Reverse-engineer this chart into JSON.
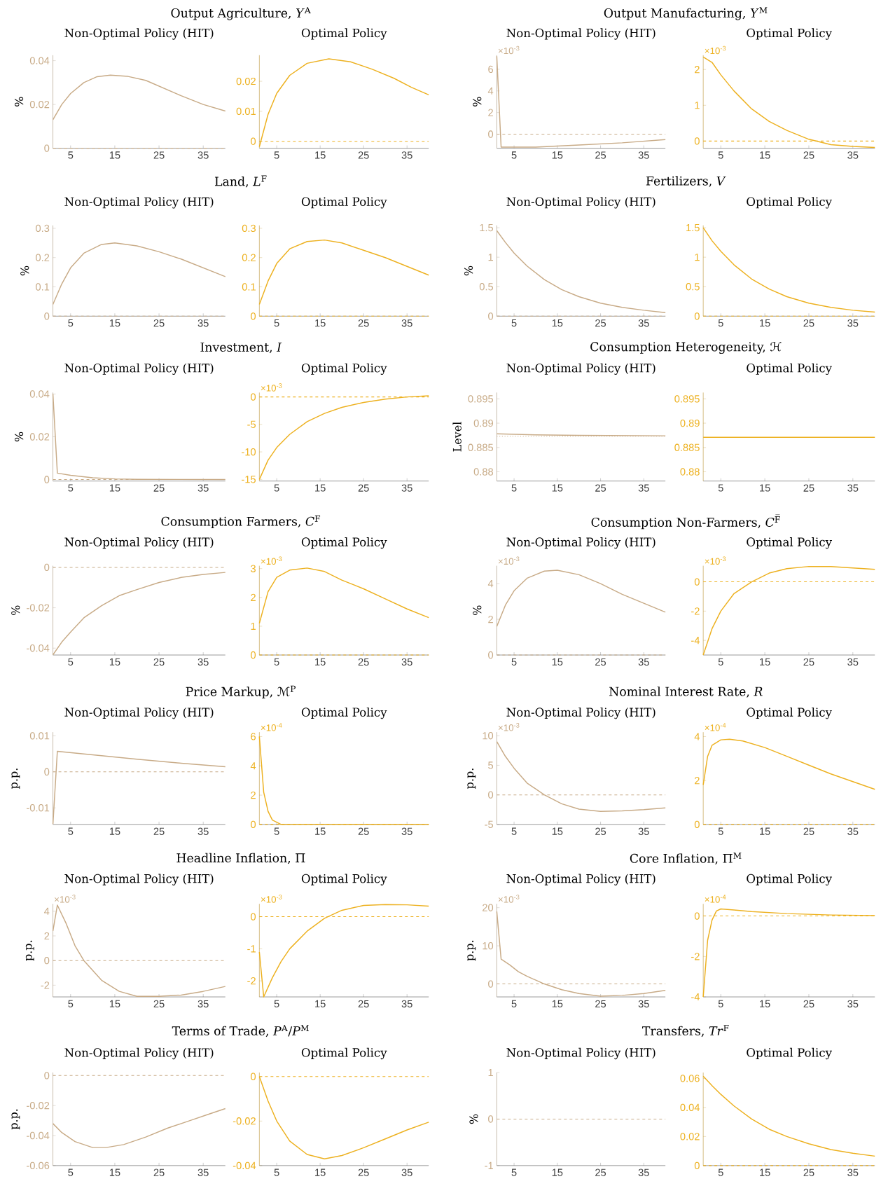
{
  "chart_data": [
    {
      "type": "line",
      "title": "Output Agriculture, *Y*$^{A}$",
      "subtitle": "Non-Optimal Policy (HIT)",
      "ylabel": "%",
      "x": [
        1,
        3,
        5,
        8,
        11,
        14,
        18,
        22,
        26,
        30,
        35,
        40
      ],
      "series": [
        {
          "color": "#c8ab87",
          "values": [
            0.013,
            0.02,
            0.025,
            0.03,
            0.0327,
            0.0334,
            0.0328,
            0.031,
            0.0275,
            0.024,
            0.02,
            0.017
          ]
        }
      ],
      "xlim": [
        1,
        40
      ],
      "ylim": [
        0,
        0.0425
      ],
      "xticks": [
        5,
        15,
        25,
        35
      ],
      "yticks": [
        0,
        0.02,
        0.04
      ],
      "ref_lines": [
        {
          "axis": "y",
          "value": 0,
          "color": "#c8ab87",
          "line_style": "dashed"
        }
      ]
    },
    {
      "type": "line",
      "subtitle": "Optimal Policy",
      "x": [
        1,
        3,
        5,
        8,
        12,
        17,
        22,
        27,
        32,
        36,
        40
      ],
      "series": [
        {
          "color": "#edb120",
          "values": [
            -0.0018,
            0.009,
            0.016,
            0.022,
            0.026,
            0.0275,
            0.0265,
            0.024,
            0.021,
            0.018,
            0.0155
          ]
        }
      ],
      "xlim": [
        1,
        40
      ],
      "ylim": [
        -0.0023,
        0.0287
      ],
      "xticks": [
        5,
        15,
        25,
        35
      ],
      "yticks": [
        0,
        0.01,
        0.02
      ],
      "ref_lines": [
        {
          "axis": "y",
          "value": 0,
          "color": "#edb120",
          "line_style": "dashed"
        }
      ]
    },
    {
      "type": "line",
      "title": "Output Manufacturing, *Y*$^{M}$",
      "subtitle": "Non-Optimal Policy (HIT)",
      "ylabel": "%",
      "x": [
        1,
        2,
        10,
        20,
        30,
        40
      ],
      "series": [
        {
          "color": "#c8ab87",
          "values": [
            7.2,
            -1.2,
            -1.2,
            -1.0,
            -0.8,
            -0.5
          ]
        }
      ],
      "xlim": [
        1,
        40
      ],
      "ylim": [
        -1.3,
        7.3
      ],
      "xticks": [
        5,
        15,
        25,
        35
      ],
      "yticks": [
        0,
        2,
        4,
        6
      ],
      "ref_lines": [
        {
          "axis": "y",
          "value": 0,
          "color": "#c8ab87",
          "line_style": "dashed"
        }
      ],
      "annotations": [
        "×10$^{-3}$"
      ]
    },
    {
      "type": "line",
      "subtitle": "Optimal Policy",
      "x": [
        1,
        3,
        5,
        8,
        12,
        16,
        20,
        25,
        30,
        35,
        40
      ],
      "series": [
        {
          "color": "#edb120",
          "values": [
            2.35,
            2.2,
            1.85,
            1.4,
            0.9,
            0.55,
            0.3,
            0.05,
            -0.1,
            -0.15,
            -0.18
          ]
        }
      ],
      "xlim": [
        1,
        40
      ],
      "ylim": [
        -0.2,
        2.4
      ],
      "xticks": [
        5,
        15,
        25,
        35
      ],
      "yticks": [
        0,
        1,
        2
      ],
      "ref_lines": [
        {
          "axis": "y",
          "value": 0,
          "color": "#edb120",
          "line_style": "dashed"
        }
      ],
      "annotations": [
        "×10$^{-3}$"
      ]
    },
    {
      "type": "line",
      "title": "Land, *L*$^{F}$",
      "subtitle": "Non-Optimal Policy (HIT)",
      "ylabel": "%",
      "x": [
        1,
        3,
        5,
        8,
        12,
        15,
        20,
        25,
        30,
        35,
        40
      ],
      "series": [
        {
          "color": "#c8ab87",
          "values": [
            0.04,
            0.11,
            0.165,
            0.215,
            0.245,
            0.25,
            0.24,
            0.22,
            0.195,
            0.165,
            0.135
          ]
        }
      ],
      "xlim": [
        1,
        40
      ],
      "ylim": [
        0,
        0.31
      ],
      "xticks": [
        5,
        15,
        25,
        35
      ],
      "yticks": [
        0,
        0.1,
        0.2,
        0.3
      ],
      "ref_lines": [
        {
          "axis": "y",
          "value": 0,
          "color": "#c8ab87",
          "line_style": "dashed"
        }
      ]
    },
    {
      "type": "line",
      "subtitle": "Optimal Policy",
      "x": [
        1,
        3,
        5,
        8,
        12,
        16,
        20,
        25,
        30,
        35,
        40
      ],
      "series": [
        {
          "color": "#edb120",
          "values": [
            0.04,
            0.12,
            0.18,
            0.23,
            0.255,
            0.26,
            0.25,
            0.225,
            0.2,
            0.17,
            0.14
          ]
        }
      ],
      "xlim": [
        1,
        40
      ],
      "ylim": [
        0,
        0.31
      ],
      "xticks": [
        5,
        15,
        25,
        35
      ],
      "yticks": [
        0,
        0.1,
        0.2,
        0.3
      ],
      "ref_lines": [
        {
          "axis": "y",
          "value": 0,
          "color": "#edb120",
          "line_style": "dashed"
        }
      ]
    },
    {
      "type": "line",
      "title": "Fertilizers, *V*",
      "subtitle": "Non-Optimal Policy (HIT)",
      "ylabel": "%",
      "x": [
        1,
        3,
        5,
        8,
        12,
        16,
        20,
        25,
        30,
        35,
        40
      ],
      "series": [
        {
          "color": "#c8ab87",
          "values": [
            1.45,
            1.25,
            1.07,
            0.85,
            0.62,
            0.45,
            0.33,
            0.22,
            0.15,
            0.1,
            0.06
          ]
        }
      ],
      "xlim": [
        1,
        40
      ],
      "ylim": [
        0,
        1.54
      ],
      "xticks": [
        5,
        15,
        25,
        35
      ],
      "yticks": [
        0,
        0.5,
        1,
        1.5
      ],
      "ref_lines": [
        {
          "axis": "y",
          "value": 0,
          "color": "#c8ab87",
          "line_style": "dashed"
        }
      ]
    },
    {
      "type": "line",
      "subtitle": "Optimal Policy",
      "x": [
        1,
        3,
        5,
        8,
        12,
        16,
        20,
        25,
        30,
        35,
        40
      ],
      "series": [
        {
          "color": "#edb120",
          "values": [
            1.5,
            1.28,
            1.1,
            0.87,
            0.63,
            0.46,
            0.33,
            0.22,
            0.15,
            0.1,
            0.07
          ]
        }
      ],
      "xlim": [
        1,
        40
      ],
      "ylim": [
        0,
        1.54
      ],
      "xticks": [
        5,
        15,
        25,
        35
      ],
      "yticks": [
        0,
        0.5,
        1,
        1.5
      ],
      "ref_lines": [
        {
          "axis": "y",
          "value": 0,
          "color": "#edb120",
          "line_style": "dashed"
        }
      ]
    },
    {
      "type": "line",
      "title": "Investment, *I*",
      "subtitle": "Non-Optimal Policy (HIT)",
      "ylabel": "%",
      "x": [
        1,
        2,
        5,
        10,
        15,
        20,
        40
      ],
      "series": [
        {
          "color": "#c8ab87",
          "values": [
            0.04,
            0.003,
            0.002,
            0.0008,
            0.0003,
            0.0001,
            0
          ]
        }
      ],
      "xlim": [
        1,
        40
      ],
      "ylim": [
        -0.0007,
        0.0407
      ],
      "xticks": [
        5,
        15,
        25,
        35
      ],
      "yticks": [
        0,
        0.02,
        0.04
      ],
      "ref_lines": [
        {
          "axis": "y",
          "value": 0,
          "color": "#c8ab87",
          "line_style": "dashed"
        }
      ]
    },
    {
      "type": "line",
      "subtitle": "Optimal Policy",
      "x": [
        1,
        3,
        5,
        8,
        12,
        16,
        20,
        25,
        30,
        35,
        40
      ],
      "series": [
        {
          "color": "#edb120",
          "values": [
            -15,
            -11.5,
            -9.2,
            -6.8,
            -4.5,
            -3,
            -1.9,
            -1,
            -0.4,
            0,
            0.2
          ]
        }
      ],
      "xlim": [
        1,
        40
      ],
      "ylim": [
        -15.3,
        0.8
      ],
      "xticks": [
        5,
        15,
        25,
        35
      ],
      "yticks": [
        -15,
        -10,
        -5,
        0
      ],
      "ref_lines": [
        {
          "axis": "y",
          "value": 0,
          "color": "#edb120",
          "line_style": "dashed"
        }
      ],
      "annotations": [
        "×10$^{-3}$"
      ]
    },
    {
      "type": "line",
      "title": "Consumption Heterogeneity, ℋ",
      "subtitle": "Non-Optimal Policy (HIT)",
      "ylabel": "Level",
      "x": [
        1,
        10,
        20,
        40
      ],
      "series": [
        {
          "color": "#c8ab87",
          "values": [
            0.8878,
            0.8876,
            0.8875,
            0.8874
          ]
        }
      ],
      "xlim": [
        1,
        40
      ],
      "ylim": [
        0.8781,
        0.8963
      ],
      "xticks": [
        5,
        15,
        25,
        35
      ],
      "yticks": [
        0.88,
        0.885,
        0.89,
        0.895
      ],
      "ref_lines": [
        {
          "axis": "y",
          "value": 0.8873,
          "color": "#c8ab87",
          "line_style": "dotted"
        }
      ]
    },
    {
      "type": "line",
      "subtitle": "Optimal Policy",
      "x": [
        1,
        40
      ],
      "series": [
        {
          "color": "#edb120",
          "values": [
            0.8871,
            0.8871
          ]
        }
      ],
      "xlim": [
        1,
        40
      ],
      "ylim": [
        0.8781,
        0.8963
      ],
      "xticks": [
        5,
        15,
        25,
        35
      ],
      "yticks": [
        0.88,
        0.885,
        0.89,
        0.895
      ]
    },
    {
      "type": "line",
      "title": "Consumption Farmers, *C*$^{F}$",
      "subtitle": "Non-Optimal Policy (HIT)",
      "ylabel": "%",
      "x": [
        1,
        3,
        5,
        8,
        12,
        16,
        20,
        25,
        30,
        35,
        40
      ],
      "series": [
        {
          "color": "#c8ab87",
          "values": [
            -0.0433,
            -0.037,
            -0.032,
            -0.025,
            -0.019,
            -0.014,
            -0.011,
            -0.0075,
            -0.005,
            -0.0035,
            -0.0025
          ]
        }
      ],
      "xlim": [
        1,
        40
      ],
      "ylim": [
        -0.0434,
        0.0008
      ],
      "xticks": [
        5,
        15,
        25,
        35
      ],
      "yticks": [
        -0.04,
        -0.02,
        0
      ],
      "ref_lines": [
        {
          "axis": "y",
          "value": 0,
          "color": "#c8ab87",
          "line_style": "dashed"
        }
      ]
    },
    {
      "type": "line",
      "subtitle": "Optimal Policy",
      "x": [
        1,
        3,
        5,
        8,
        12,
        16,
        20,
        25,
        30,
        35,
        40
      ],
      "series": [
        {
          "color": "#edb120",
          "values": [
            1.1,
            2.2,
            2.7,
            2.95,
            3.02,
            2.9,
            2.6,
            2.3,
            1.95,
            1.6,
            1.3
          ]
        }
      ],
      "xlim": [
        1,
        40
      ],
      "ylim": [
        0,
        3.1
      ],
      "xticks": [
        5,
        15,
        25,
        35
      ],
      "yticks": [
        0,
        1,
        2,
        3
      ],
      "ref_lines": [
        {
          "axis": "y",
          "value": 0,
          "color": "#edb120",
          "line_style": "dashed"
        }
      ],
      "annotations": [
        "×10$^{-3}$"
      ]
    },
    {
      "type": "line",
      "title": "Consumption Non-Farmers, *C*$^{F̅}$",
      "subtitle": "Non-Optimal Policy (HIT)",
      "ylabel": "%",
      "x": [
        1,
        3,
        5,
        8,
        12,
        15,
        20,
        25,
        30,
        35,
        40
      ],
      "series": [
        {
          "color": "#c8ab87",
          "values": [
            1.6,
            2.8,
            3.6,
            4.3,
            4.7,
            4.75,
            4.5,
            4,
            3.4,
            2.9,
            2.4
          ]
        }
      ],
      "xlim": [
        1,
        40
      ],
      "ylim": [
        0,
        5
      ],
      "xticks": [
        5,
        15,
        25,
        35
      ],
      "yticks": [
        0,
        2,
        4
      ],
      "ref_lines": [
        {
          "axis": "y",
          "value": 0,
          "color": "#c8ab87",
          "line_style": "dashed"
        }
      ],
      "annotations": [
        "×10$^{-3}$"
      ]
    },
    {
      "type": "line",
      "subtitle": "Optimal Policy",
      "x": [
        1,
        3,
        5,
        8,
        12,
        16,
        20,
        25,
        30,
        35,
        40
      ],
      "series": [
        {
          "color": "#edb120",
          "values": [
            -5,
            -3.2,
            -2,
            -0.8,
            0,
            0.6,
            0.9,
            1.05,
            1.05,
            0.95,
            0.85
          ]
        }
      ],
      "xlim": [
        1,
        40
      ],
      "ylim": [
        -5,
        1.1
      ],
      "xticks": [
        5,
        15,
        25,
        35
      ],
      "yticks": [
        -4,
        -2,
        0
      ],
      "ref_lines": [
        {
          "axis": "y",
          "value": 0,
          "color": "#edb120",
          "line_style": "dashed"
        }
      ],
      "annotations": [
        "×10$^{-3}$"
      ]
    },
    {
      "type": "line",
      "title": "Price Markup, ℳ$^{P}$",
      "subtitle": "Non-Optimal Policy (HIT)",
      "ylabel": "p.p.",
      "x": [
        1,
        2,
        10,
        20,
        30,
        40
      ],
      "series": [
        {
          "color": "#c8ab87",
          "values": [
            -0.0145,
            0.0057,
            0.0047,
            0.0035,
            0.0024,
            0.0014
          ]
        }
      ],
      "xlim": [
        1,
        40
      ],
      "ylim": [
        -0.0146,
        0.011
      ],
      "xticks": [
        5,
        15,
        25,
        35
      ],
      "yticks": [
        -0.01,
        0,
        0.01
      ],
      "ref_lines": [
        {
          "axis": "y",
          "value": 0,
          "color": "#c8ab87",
          "line_style": "dashed"
        }
      ]
    },
    {
      "type": "line",
      "subtitle": "Optimal Policy",
      "x": [
        1,
        2,
        3,
        4,
        6,
        40
      ],
      "series": [
        {
          "color": "#edb120",
          "values": [
            6,
            2.2,
            0.9,
            0.3,
            0,
            0
          ]
        }
      ],
      "xlim": [
        1,
        40
      ],
      "ylim": [
        0,
        6.3
      ],
      "xticks": [
        5,
        15,
        25,
        35
      ],
      "yticks": [
        0,
        2,
        4,
        6
      ],
      "ref_lines": [
        {
          "axis": "y",
          "value": 0,
          "color": "#edb120",
          "line_style": "dashed"
        }
      ],
      "annotations": [
        "×10$^{-4}$"
      ]
    },
    {
      "type": "line",
      "title": "Nominal Interest Rate, *R*",
      "subtitle": "Non-Optimal Policy (HIT)",
      "ylabel": "p.p.",
      "x": [
        1,
        3,
        5,
        8,
        12,
        16,
        20,
        25,
        30,
        35,
        40
      ],
      "series": [
        {
          "color": "#c8ab87",
          "values": [
            9,
            6.5,
            4.5,
            2,
            0,
            -1.5,
            -2.4,
            -2.8,
            -2.7,
            -2.5,
            -2.2
          ]
        }
      ],
      "xlim": [
        1,
        40
      ],
      "ylim": [
        -5,
        10.6
      ],
      "xticks": [
        5,
        15,
        25,
        35
      ],
      "yticks": [
        -5,
        0,
        5,
        10
      ],
      "ref_lines": [
        {
          "axis": "y",
          "value": 0,
          "color": "#c8ab87",
          "line_style": "dashed"
        }
      ],
      "annotations": [
        "×10$^{-3}$"
      ]
    },
    {
      "type": "line",
      "subtitle": "Optimal Policy",
      "x": [
        1,
        2,
        3,
        5,
        7,
        10,
        15,
        20,
        25,
        30,
        35,
        40
      ],
      "series": [
        {
          "color": "#edb120",
          "values": [
            1.8,
            3.1,
            3.6,
            3.85,
            3.88,
            3.8,
            3.5,
            3.1,
            2.7,
            2.3,
            1.95,
            1.6
          ]
        }
      ],
      "xlim": [
        1,
        40
      ],
      "ylim": [
        0,
        4.2
      ],
      "xticks": [
        5,
        15,
        25,
        35
      ],
      "yticks": [
        0,
        2,
        4
      ],
      "ref_lines": [
        {
          "axis": "y",
          "value": 0,
          "color": "#edb120",
          "line_style": "dashed"
        }
      ],
      "annotations": [
        "×10$^{-4}$"
      ]
    },
    {
      "type": "line",
      "title": "Headline Inflation, Π",
      "subtitle": "Non-Optimal Policy (HIT)",
      "ylabel": "p.p.",
      "x": [
        1,
        2,
        4,
        6,
        8,
        12,
        16,
        20,
        25,
        30,
        35,
        40
      ],
      "series": [
        {
          "color": "#c8ab87",
          "values": [
            2.4,
            4.5,
            3,
            1.2,
            0,
            -1.6,
            -2.5,
            -2.9,
            -2.9,
            -2.8,
            -2.5,
            -2.1
          ]
        }
      ],
      "xlim": [
        1,
        40
      ],
      "ylim": [
        -2.95,
        4.6
      ],
      "xticks": [
        5,
        15,
        25,
        35
      ],
      "yticks": [
        -2,
        0,
        2,
        4
      ],
      "ref_lines": [
        {
          "axis": "y",
          "value": 0,
          "color": "#c8ab87",
          "line_style": "dashed"
        }
      ],
      "annotations": [
        "×10$^{-3}$"
      ]
    },
    {
      "type": "line",
      "subtitle": "Optimal Policy",
      "x": [
        1,
        2,
        4,
        6,
        8,
        12,
        16,
        20,
        25,
        30,
        35,
        40
      ],
      "series": [
        {
          "color": "#edb120",
          "values": [
            -1.1,
            -2.5,
            -1.9,
            -1.4,
            -1,
            -0.45,
            -0.05,
            0.2,
            0.35,
            0.38,
            0.37,
            0.33
          ]
        }
      ],
      "xlim": [
        1,
        40
      ],
      "ylim": [
        -2.5,
        0.4
      ],
      "xticks": [
        5,
        15,
        25,
        35
      ],
      "yticks": [
        -2,
        -1,
        0
      ],
      "ref_lines": [
        {
          "axis": "y",
          "value": 0,
          "color": "#edb120",
          "line_style": "dashed"
        }
      ],
      "annotations": [
        "×10$^{-3}$"
      ]
    },
    {
      "type": "line",
      "title": "Core Inflation, Π$^{M}$",
      "subtitle": "Non-Optimal Policy (HIT)",
      "ylabel": "p.p.",
      "x": [
        1,
        2,
        4,
        6,
        8,
        12,
        16,
        20,
        25,
        30,
        35,
        40
      ],
      "series": [
        {
          "color": "#c8ab87",
          "values": [
            19,
            6.5,
            5,
            3.2,
            2,
            0,
            -1.5,
            -2.5,
            -3.2,
            -3,
            -2.5,
            -1.7
          ]
        }
      ],
      "xlim": [
        1,
        40
      ],
      "ylim": [
        -3.4,
        21
      ],
      "xticks": [
        5,
        15,
        25,
        35
      ],
      "yticks": [
        0,
        10,
        20
      ],
      "ref_lines": [
        {
          "axis": "y",
          "value": 0,
          "color": "#c8ab87",
          "line_style": "dashed"
        }
      ],
      "annotations": [
        "×10$^{-3}$"
      ]
    },
    {
      "type": "line",
      "subtitle": "Optimal Policy",
      "x": [
        1,
        2,
        3,
        4,
        5,
        8,
        12,
        20,
        30,
        40
      ],
      "series": [
        {
          "color": "#edb120",
          "values": [
            -4,
            -1.2,
            -0.2,
            0.25,
            0.35,
            0.3,
            0.22,
            0.12,
            0.05,
            0.02
          ]
        }
      ],
      "xlim": [
        1,
        40
      ],
      "ylim": [
        -4,
        0.6
      ],
      "xticks": [
        5,
        15,
        25,
        35
      ],
      "yticks": [
        -4,
        -2,
        0
      ],
      "ref_lines": [
        {
          "axis": "y",
          "value": 0,
          "color": "#edb120",
          "line_style": "dashed"
        }
      ],
      "annotations": [
        "×10$^{-4}$"
      ]
    },
    {
      "type": "line",
      "title": "Terms of Trade, *P*$^{A}$/*P*$^{M}$",
      "subtitle": "Non-Optimal Policy (HIT)",
      "ylabel": "p.p.",
      "x": [
        1,
        3,
        6,
        10,
        13,
        17,
        22,
        27,
        32,
        36,
        40
      ],
      "series": [
        {
          "color": "#c8ab87",
          "values": [
            -0.032,
            -0.038,
            -0.044,
            -0.048,
            -0.048,
            -0.046,
            -0.041,
            -0.035,
            -0.03,
            -0.026,
            -0.022
          ]
        }
      ],
      "xlim": [
        1,
        40
      ],
      "ylim": [
        -0.06,
        0.002
      ],
      "xticks": [
        5,
        15,
        25,
        35
      ],
      "yticks": [
        -0.06,
        -0.04,
        -0.02,
        0
      ],
      "ref_lines": [
        {
          "axis": "y",
          "value": 0,
          "color": "#c8ab87",
          "line_style": "dashed"
        }
      ]
    },
    {
      "type": "line",
      "subtitle": "Optimal Policy",
      "x": [
        1,
        3,
        5,
        8,
        12,
        16,
        20,
        25,
        30,
        35,
        40
      ],
      "series": [
        {
          "color": "#edb120",
          "values": [
            0,
            -0.011,
            -0.02,
            -0.029,
            -0.035,
            -0.037,
            -0.0355,
            -0.032,
            -0.028,
            -0.024,
            -0.0205
          ]
        }
      ],
      "xlim": [
        1,
        40
      ],
      "ylim": [
        -0.04,
        0.0018
      ],
      "xticks": [
        5,
        15,
        25,
        35
      ],
      "yticks": [
        -0.04,
        -0.02,
        0
      ],
      "ref_lines": [
        {
          "axis": "y",
          "value": 0,
          "color": "#edb120",
          "line_style": "dashed"
        }
      ]
    },
    {
      "type": "line",
      "title": "Transfers, *Tr*$^{F}$",
      "subtitle": "Non-Optimal Policy (HIT)",
      "ylabel": "%",
      "xlim": [
        1,
        40
      ],
      "ylim": [
        -1,
        1
      ],
      "xticks": [
        5,
        15,
        25,
        35
      ],
      "yticks": [
        -1,
        0,
        1
      ],
      "ref_lines": [
        {
          "axis": "y",
          "value": 0,
          "color": "#c8ab87",
          "line_style": "dashed"
        }
      ]
    },
    {
      "type": "line",
      "subtitle": "Optimal Policy",
      "x": [
        1,
        3,
        5,
        8,
        12,
        16,
        20,
        25,
        30,
        35,
        40
      ],
      "series": [
        {
          "color": "#edb120",
          "values": [
            0.0615,
            0.055,
            0.049,
            0.041,
            0.032,
            0.025,
            0.02,
            0.015,
            0.011,
            0.0085,
            0.0065
          ]
        }
      ],
      "xlim": [
        1,
        40
      ],
      "ylim": [
        0,
        0.064
      ],
      "xticks": [
        5,
        15,
        25,
        35
      ],
      "yticks": [
        0,
        0.02,
        0.04,
        0.06
      ],
      "ref_lines": [
        {
          "axis": "y",
          "value": 0,
          "color": "#edb120",
          "line_style": "dashed"
        }
      ]
    }
  ]
}
